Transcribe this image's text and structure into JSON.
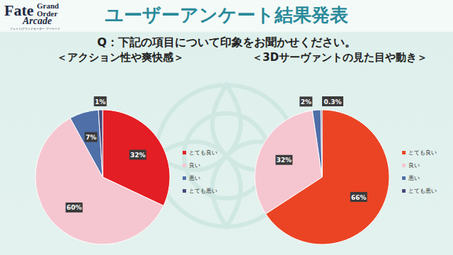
{
  "header": {
    "logo": {
      "title": [
        "Fate",
        "Grand",
        "Order",
        "Arcade"
      ],
      "subtitle": "フェイト/グランドオーダー アーケード"
    },
    "title": "ユーザーアンケート結果発表",
    "question": "Q：下記の項目について印象をお聞かせください。"
  },
  "chart_data": [
    {
      "type": "pie",
      "title": "＜アクション性や爽快感＞",
      "categories": [
        "とても良い",
        "良い",
        "悪い",
        "とても悪い"
      ],
      "values": [
        32,
        60,
        7,
        1
      ],
      "value_labels": [
        "32%",
        "60%",
        "7%",
        "1%"
      ],
      "colors": [
        "#e31e24",
        "#f5c6d0",
        "#4f6fa8",
        "#4a4a7a"
      ],
      "data_labels": true,
      "legend": "right"
    },
    {
      "type": "pie",
      "title": "＜3Dサーヴァントの見た目や動き＞",
      "categories": [
        "とても良い",
        "良い",
        "悪い",
        "とても悪い"
      ],
      "values": [
        66,
        32,
        2,
        0.3
      ],
      "value_labels": [
        "66%",
        "32%",
        "2%",
        "0.3%"
      ],
      "colors": [
        "#ea4424",
        "#f5c6d0",
        "#4f6fa8",
        "#4a4a7a"
      ],
      "data_labels": true,
      "legend": "right"
    }
  ]
}
